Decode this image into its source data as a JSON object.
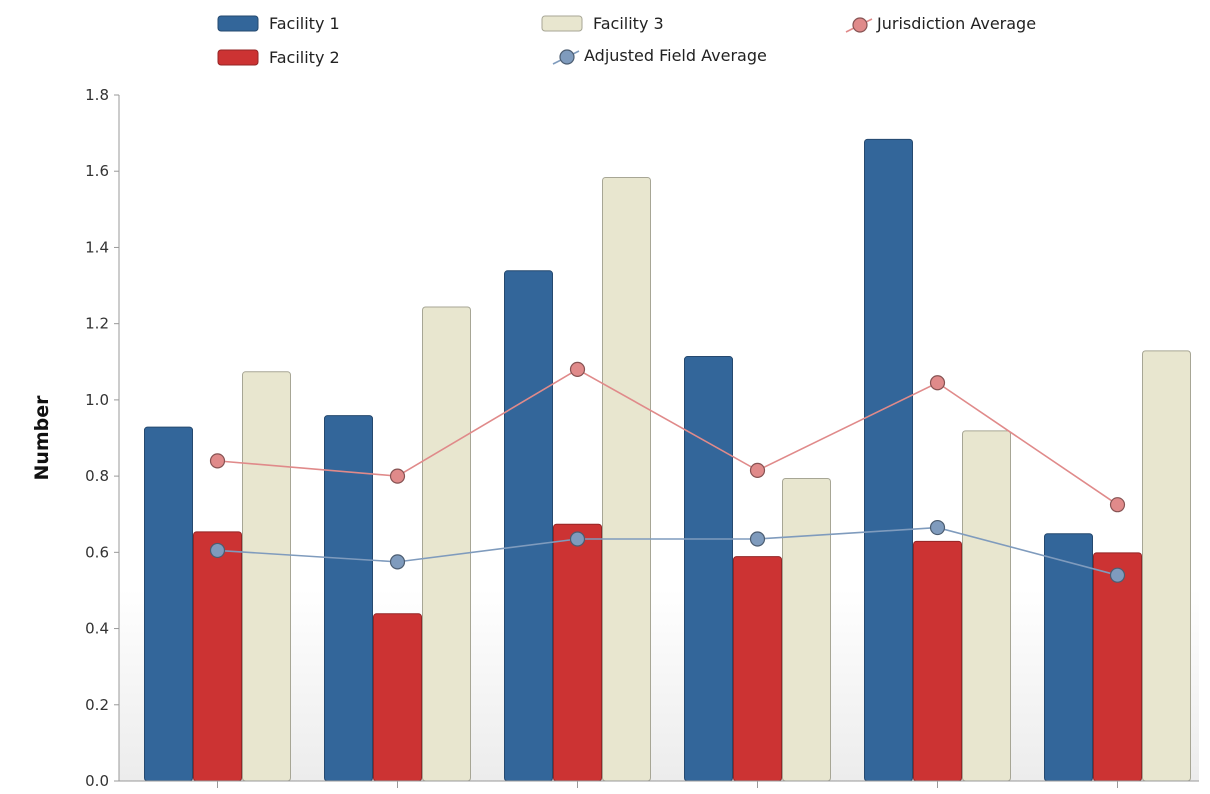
{
  "chart_data": {
    "type": "bar",
    "categories": [
      "",
      "",
      "",
      "",
      "",
      ""
    ],
    "series": [
      {
        "name": "Facility 1",
        "type": "bar",
        "color": "#33669a",
        "values": [
          0.93,
          0.96,
          1.34,
          1.115,
          1.685,
          0.65
        ]
      },
      {
        "name": "Facility 2",
        "type": "bar",
        "color": "#cc3333",
        "values": [
          0.655,
          0.44,
          0.675,
          0.59,
          0.63,
          0.6
        ]
      },
      {
        "name": "Facility 3",
        "type": "bar",
        "color": "#e8e6cf",
        "values": [
          1.075,
          1.245,
          1.585,
          0.795,
          0.92,
          1.13
        ]
      },
      {
        "name": "Jurisdiction Average",
        "type": "line",
        "color": "#e08a8a",
        "values": [
          0.84,
          0.8,
          1.08,
          0.815,
          1.045,
          0.725
        ]
      },
      {
        "name": "Adjusted Field Average",
        "type": "line",
        "color": "#7f9bbd",
        "values": [
          0.605,
          0.575,
          0.635,
          0.635,
          0.665,
          0.54
        ]
      }
    ],
    "xlabel": "",
    "ylabel": "Number",
    "ylim": [
      0,
      1.8
    ],
    "yticks": [
      "0.0",
      "0.2",
      "0.4",
      "0.6",
      "0.8",
      "1.0",
      "1.2",
      "1.4",
      "1.6",
      "1.8"
    ],
    "legend_position": "top",
    "grid": false
  }
}
